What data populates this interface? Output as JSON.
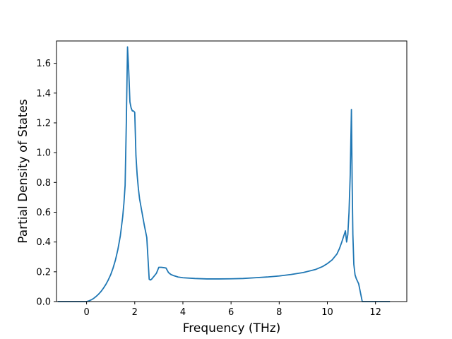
{
  "chart_data": {
    "type": "line",
    "title": "",
    "xlabel": "Frequency (THz)",
    "ylabel": "Partial Density of States",
    "xlim": [
      -1.25,
      13.3
    ],
    "ylim": [
      0,
      1.75
    ],
    "xticks": [
      0,
      2,
      4,
      6,
      8,
      10,
      12
    ],
    "yticks": [
      0.0,
      0.2,
      0.4,
      0.6,
      0.8,
      1.0,
      1.2,
      1.4,
      1.6
    ],
    "xtick_labels": [
      "0",
      "2",
      "4",
      "6",
      "8",
      "10",
      "12"
    ],
    "ytick_labels": [
      "0.0",
      "0.2",
      "0.4",
      "0.6",
      "0.8",
      "1.0",
      "1.2",
      "1.4",
      "1.6"
    ],
    "grid": false,
    "line_color": "#1f77b4",
    "series": [
      {
        "x": [
          -1.2,
          -0.5,
          0.0,
          0.1,
          0.2,
          0.3,
          0.4,
          0.5,
          0.6,
          0.7,
          0.8,
          0.9,
          1.0,
          1.1,
          1.2,
          1.3,
          1.4,
          1.5,
          1.55,
          1.6,
          1.65,
          1.7,
          1.75,
          1.8,
          1.85,
          1.9,
          1.95,
          2.0,
          2.05,
          2.1,
          2.15,
          2.2,
          2.3,
          2.4,
          2.5,
          2.6,
          2.65,
          2.7,
          2.8,
          2.9,
          3.0,
          3.1,
          3.2,
          3.3,
          3.4,
          3.5,
          3.6,
          3.7,
          3.8,
          4.0,
          4.5,
          5.0,
          5.5,
          6.0,
          6.5,
          7.0,
          7.5,
          8.0,
          8.5,
          9.0,
          9.5,
          9.8,
          10.0,
          10.2,
          10.4,
          10.5,
          10.6,
          10.7,
          10.75,
          10.8,
          10.85,
          10.9,
          10.95,
          11.0,
          11.03,
          11.06,
          11.1,
          11.15,
          11.2,
          11.3,
          11.4,
          11.45,
          11.5,
          11.7,
          12.0,
          12.6
        ],
        "y": [
          0.0,
          0.0,
          0.0,
          0.005,
          0.012,
          0.022,
          0.035,
          0.05,
          0.068,
          0.09,
          0.115,
          0.145,
          0.18,
          0.225,
          0.28,
          0.35,
          0.44,
          0.57,
          0.66,
          0.78,
          1.2,
          1.71,
          1.55,
          1.34,
          1.3,
          1.28,
          1.28,
          1.27,
          0.98,
          0.85,
          0.76,
          0.69,
          0.6,
          0.51,
          0.43,
          0.15,
          0.145,
          0.15,
          0.17,
          0.19,
          0.23,
          0.23,
          0.228,
          0.225,
          0.195,
          0.182,
          0.175,
          0.17,
          0.165,
          0.16,
          0.155,
          0.152,
          0.152,
          0.153,
          0.155,
          0.16,
          0.165,
          0.172,
          0.182,
          0.195,
          0.215,
          0.235,
          0.255,
          0.28,
          0.32,
          0.355,
          0.4,
          0.45,
          0.475,
          0.4,
          0.45,
          0.6,
          0.85,
          1.29,
          0.8,
          0.45,
          0.25,
          0.18,
          0.155,
          0.12,
          0.04,
          0.0,
          0.0,
          0.0,
          0.0,
          0.0
        ]
      }
    ]
  }
}
